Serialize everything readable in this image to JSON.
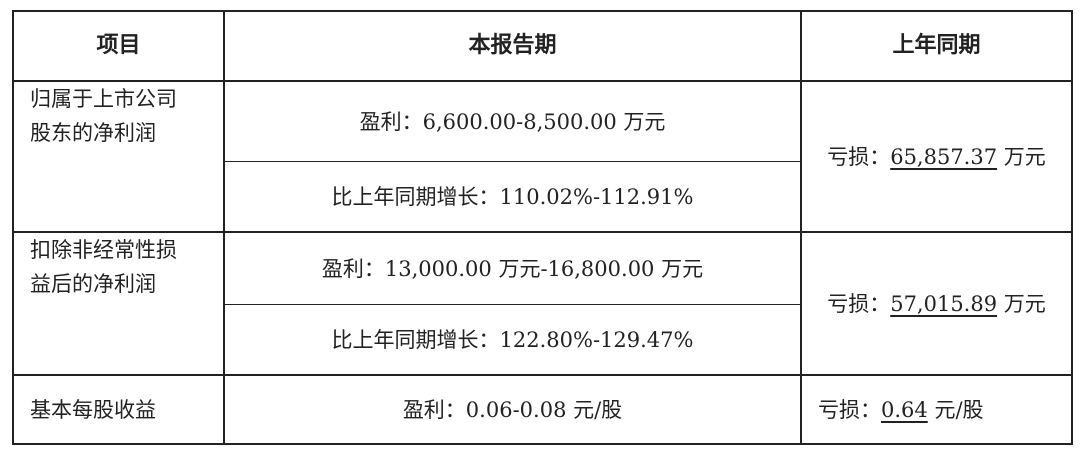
{
  "headers": {
    "item": "项目",
    "current": "本报告期",
    "prior": "上年同期"
  },
  "rows": [
    {
      "label": "归属于上市公司股东的净利润",
      "label_lines": [
        "归属于上市公司",
        "股东的净利润"
      ],
      "current": [
        "盈利：6,600.00-8,500.00 万元",
        "比上年同期增长：110.02%-112.91%"
      ],
      "prior_prefix": "亏损：",
      "prior_value": "65,857.37",
      "prior_unit": "万元"
    },
    {
      "label": "扣除非经常性损益后的净利润",
      "label_lines": [
        "扣除非经常性损",
        "益后的净利润"
      ],
      "current": [
        "盈利：13,000.00 万元-16,800.00 万元",
        "比上年同期增长：122.80%-129.47%"
      ],
      "prior_prefix": "亏损：",
      "prior_value": "57,015.89",
      "prior_unit": "万元"
    },
    {
      "label": "基本每股收益",
      "label_lines": [
        "基本每股收益"
      ],
      "current": [
        "盈利：0.06-0.08 元/股"
      ],
      "prior_prefix": "亏损：",
      "prior_value": "0.64",
      "prior_unit": "元/股"
    }
  ]
}
